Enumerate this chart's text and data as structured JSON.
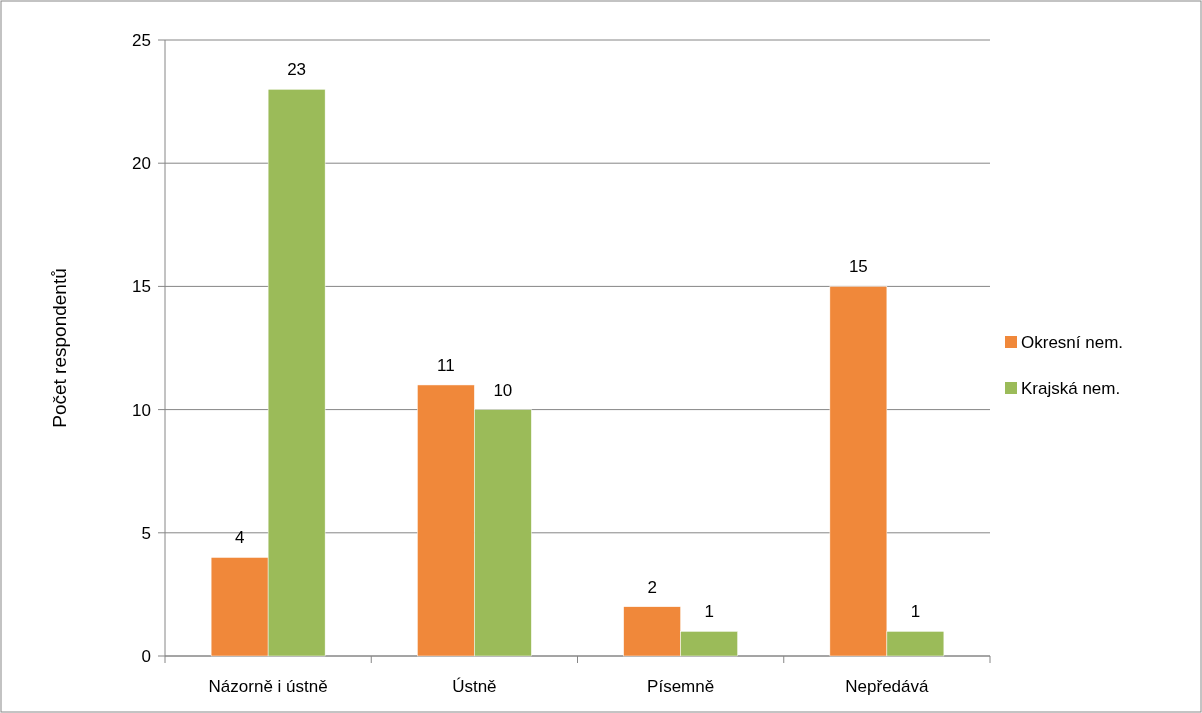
{
  "chart_data": {
    "type": "bar",
    "ylabel": "Počet respondentů",
    "categories": [
      "Názorně i ústně",
      "Ústně",
      "Písemně",
      "Nepředává"
    ],
    "series": [
      {
        "name": "Okresní nem.",
        "color": "#f0883a",
        "values": [
          4,
          11,
          2,
          15
        ]
      },
      {
        "name": "Krajská nem.",
        "color": "#9bbb59",
        "values": [
          23,
          10,
          1,
          1
        ]
      }
    ],
    "ylim": [
      0,
      25
    ],
    "yticks": [
      0,
      5,
      10,
      15,
      20,
      25
    ],
    "grid": "y",
    "legend": "right",
    "data_labels": true
  }
}
